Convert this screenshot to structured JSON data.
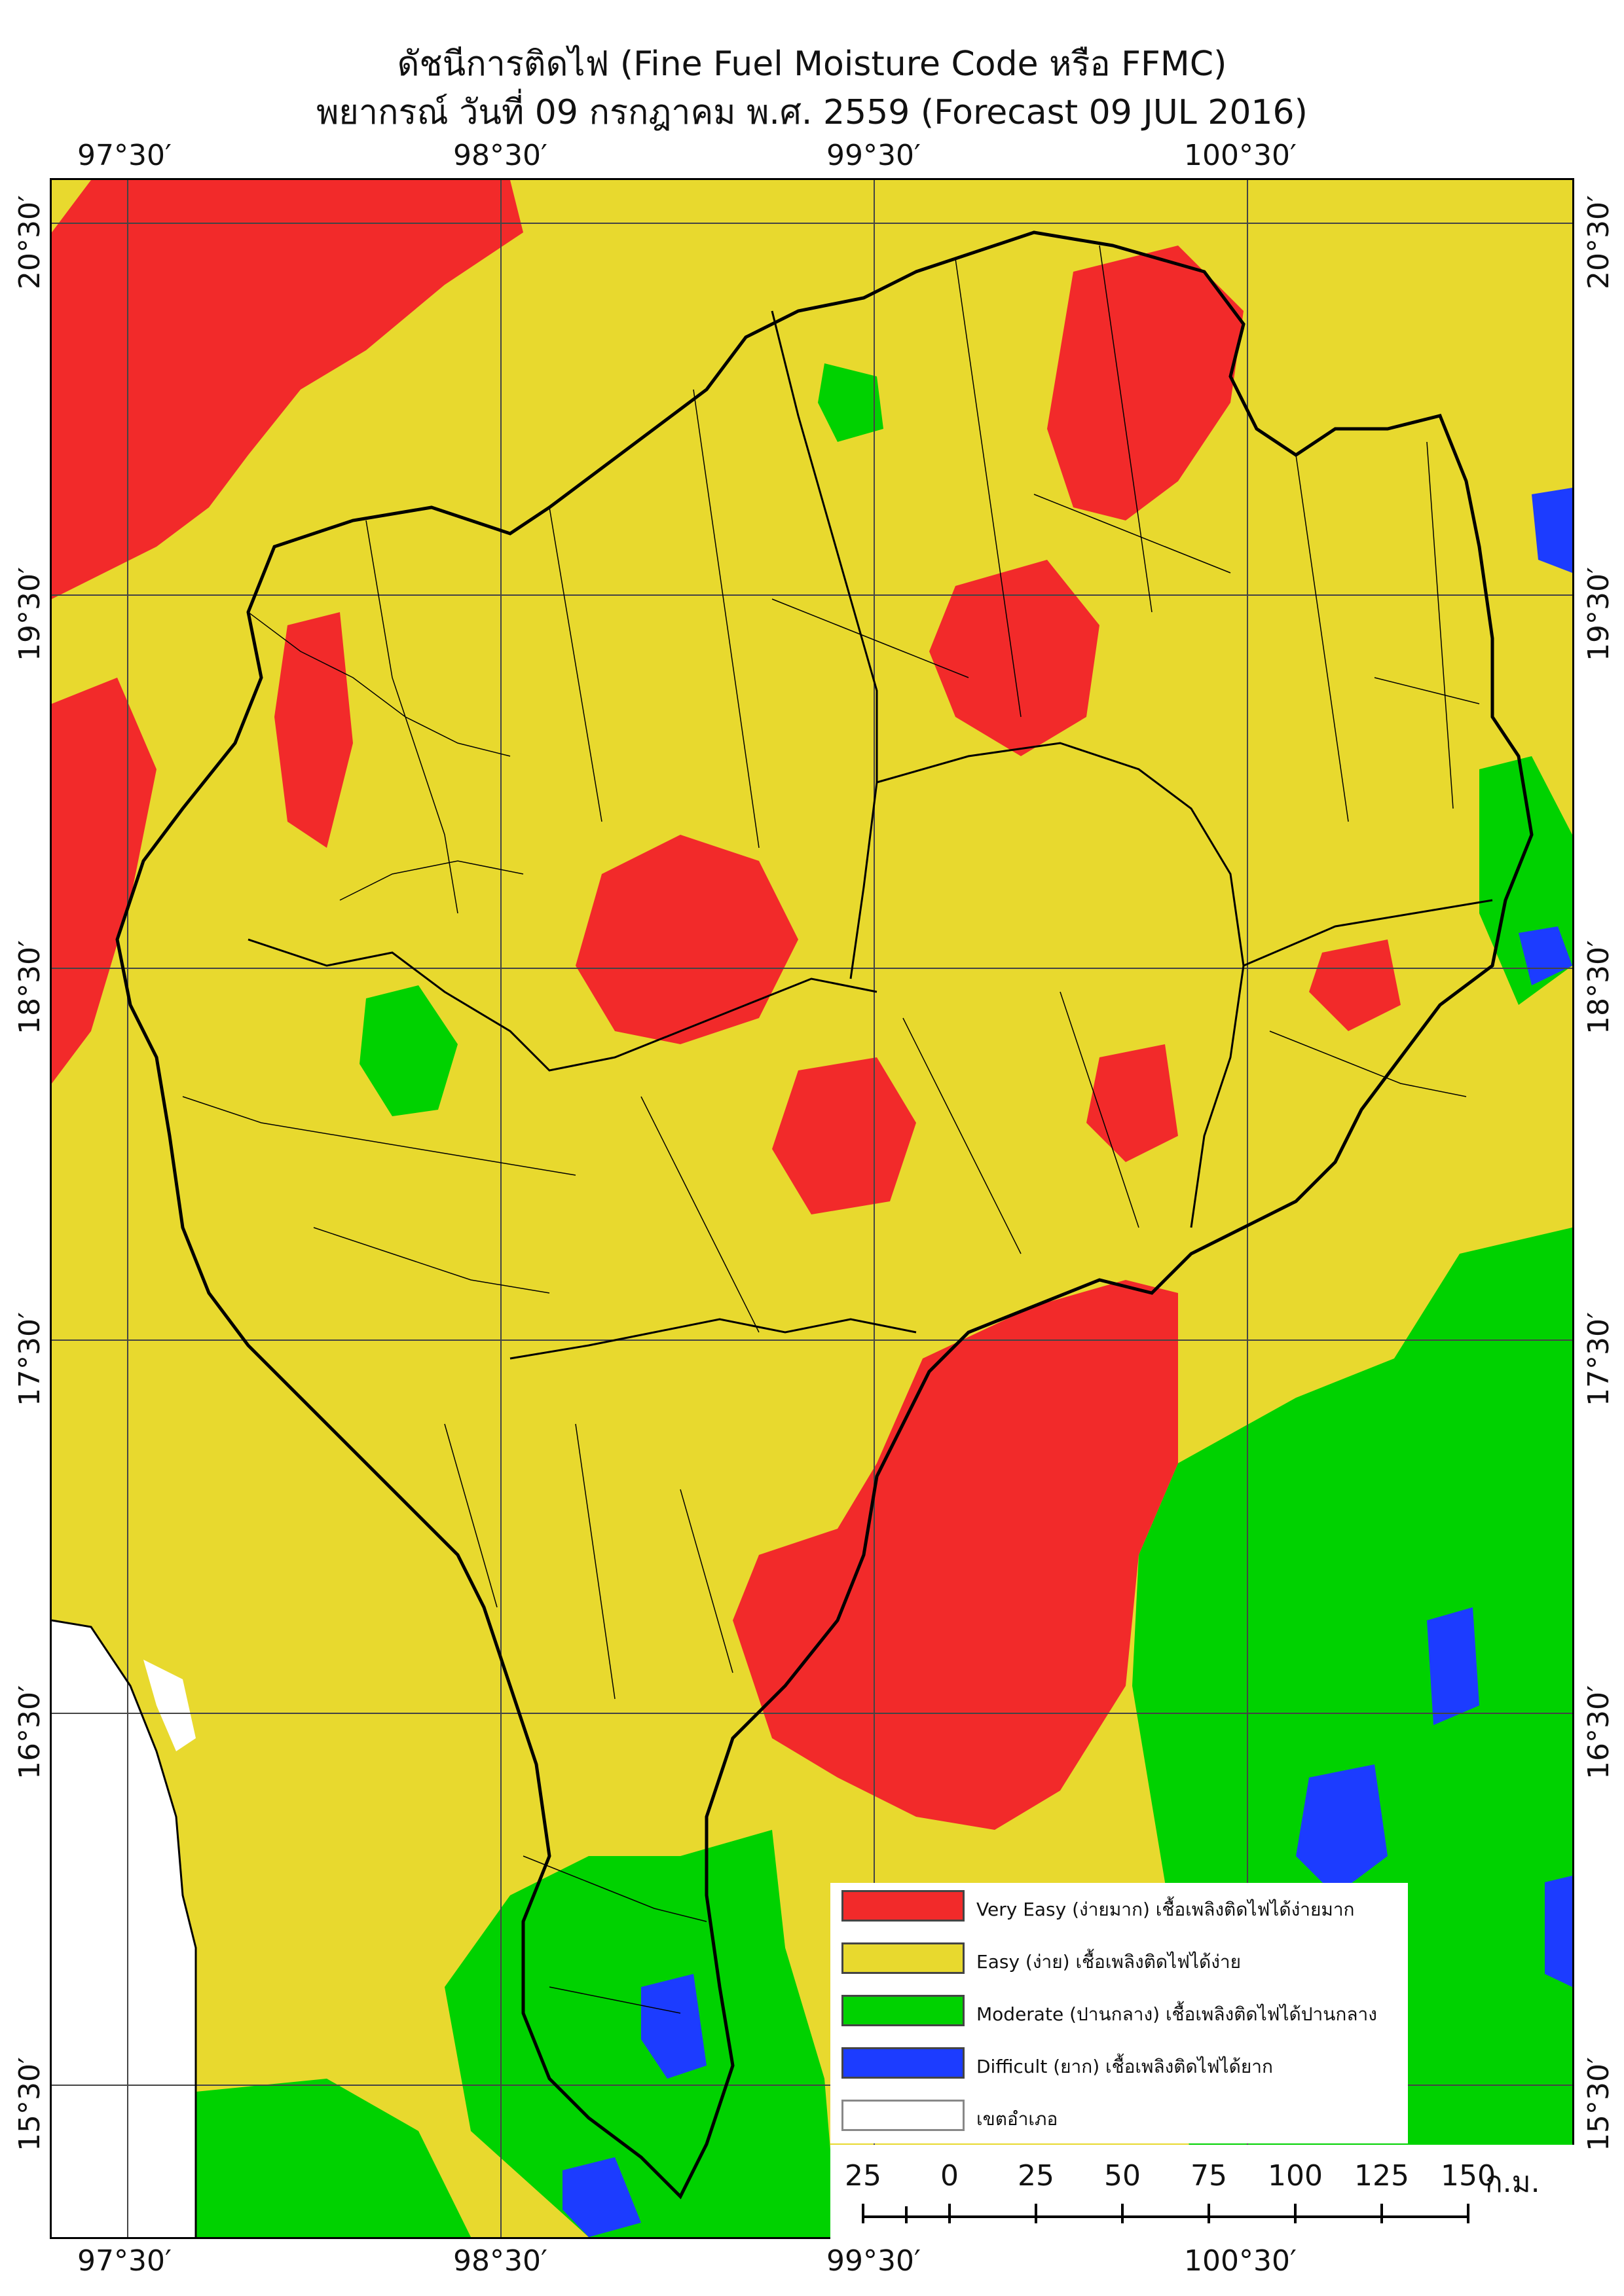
{
  "header": {
    "title_line1": "ดัชนีการติดไฟ (Fine Fuel Moisture Code หรือ FFMC)",
    "title_line2": "พยากรณ์ วันที่ 09 กรกฎาคม พ.ศ. 2559 (Forecast 09 JUL 2016)"
  },
  "axes": {
    "longitudes": [
      "97°30′",
      "98°30′",
      "99°30′",
      "100°30′"
    ],
    "latitudes": [
      "20°30′",
      "19°30′",
      "18°30′",
      "17°30′",
      "16°30′",
      "15°30′"
    ]
  },
  "legend": {
    "items": [
      {
        "label": "Very Easy (ง่ายมาก) เชื้อเพลิงติดไฟได้ง่ายมาก",
        "color": "#f22a2a"
      },
      {
        "label": "Easy (ง่าย) เชื้อเพลิงติดไฟได้ง่าย",
        "color": "#e8d92e"
      },
      {
        "label": "Moderate (ปานกลาง) เชื้อเพลิงติดไฟได้ปานกลาง",
        "color": "#00d200"
      },
      {
        "label": "Difficult (ยาก) เชื้อเพลิงติดไฟได้ยาก",
        "color": "#1c3cff"
      },
      {
        "label": "เขตอำเภอ",
        "color": "#ffffff"
      }
    ]
  },
  "scale": {
    "ticks": [
      "25",
      "0",
      "25",
      "50",
      "75",
      "100",
      "125",
      "150"
    ],
    "unit": "ก.ม."
  },
  "colors": {
    "very_easy": "#f22a2a",
    "easy": "#e8d92e",
    "moderate": "#00d200",
    "difficult": "#1c3cff",
    "sea": "#ffffff",
    "boundary": "#000000"
  }
}
